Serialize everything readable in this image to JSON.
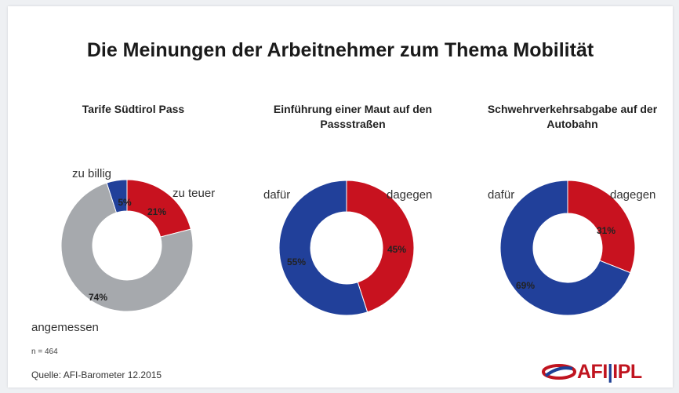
{
  "title": "Die Meinungen der Arbeitnehmer zum Thema Mobilität",
  "footnote": "n = 464",
  "source": "Quelle: AFI-Barometer 12.2015",
  "logo": {
    "left": "AFI",
    "sep": "|",
    "right": "IPL"
  },
  "colors": {
    "red": "#c8121f",
    "blue": "#21409a",
    "gray": "#a6a9ad"
  },
  "chart_data": [
    {
      "type": "pie",
      "title": "Tarife Südtirol Pass",
      "slices": [
        {
          "label": "zu billig",
          "value": 5,
          "value_label": "5%",
          "color": "#21409a"
        },
        {
          "label": "zu teuer",
          "value": 21,
          "value_label": "21%",
          "color": "#c8121f"
        },
        {
          "label": "angemessen",
          "value": 74,
          "value_label": "74%",
          "color": "#a6a9ad"
        }
      ]
    },
    {
      "type": "pie",
      "title": "Einführung einer Maut auf den Passstraßen",
      "slices": [
        {
          "label": "dagegen",
          "value": 45,
          "value_label": "45%",
          "color": "#c8121f"
        },
        {
          "label": "dafür",
          "value": 55,
          "value_label": "55%",
          "color": "#21409a"
        }
      ]
    },
    {
      "type": "pie",
      "title": "Schwehrverkehrsabgabe auf der Autobahn",
      "slices": [
        {
          "label": "dagegen",
          "value": 31,
          "value_label": "31%",
          "color": "#c8121f"
        },
        {
          "label": "dafür",
          "value": 69,
          "value_label": "69%",
          "color": "#21409a"
        }
      ]
    }
  ]
}
